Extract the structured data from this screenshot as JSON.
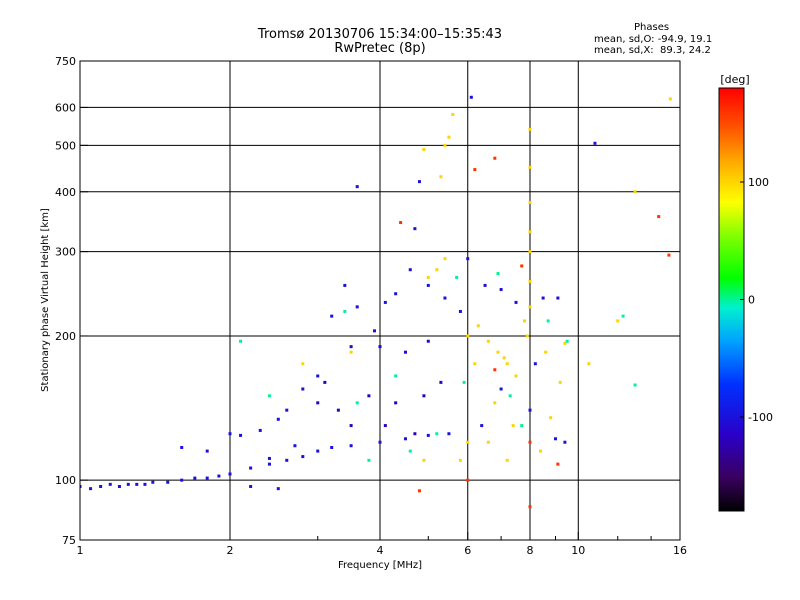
{
  "header": {
    "title": "Tromsø 20130706 15:34:00–15:35:43",
    "subtitle": "RwPretec (8p)"
  },
  "stats": {
    "heading": "Phases",
    "line1": "mean, sd,O: -94.9, 19.1",
    "line2": "mean, sd,X:  89.3, 24.2"
  },
  "chart_data": {
    "type": "scatter",
    "xlabel": "Frequency [MHz]",
    "ylabel": "Stationary phase Virtual Height [km]",
    "xscale": "log",
    "yscale": "log",
    "xlim": [
      1,
      16
    ],
    "ylim": [
      75,
      750
    ],
    "xticks": [
      "1",
      "2",
      "4",
      "6",
      "8",
      "10",
      "16"
    ],
    "yticks": [
      "75",
      "100",
      "200",
      "300",
      "400",
      "500",
      "600",
      "750"
    ],
    "grid": true,
    "colorbar": {
      "label": "[deg]",
      "range": [
        -180,
        180
      ],
      "ticks": [
        "100",
        "0",
        "-100"
      ]
    },
    "series": [
      {
        "points": [
          [
            1.0,
            97,
            -100
          ],
          [
            1.05,
            96,
            -100
          ],
          [
            1.1,
            97,
            -100
          ],
          [
            1.15,
            98,
            -100
          ],
          [
            1.2,
            97,
            -100
          ],
          [
            1.25,
            98,
            -100
          ],
          [
            1.3,
            98,
            -100
          ],
          [
            1.35,
            98,
            -100
          ],
          [
            1.4,
            99,
            -100
          ],
          [
            1.5,
            99,
            -100
          ],
          [
            1.6,
            100,
            -100
          ],
          [
            1.7,
            101,
            -100
          ],
          [
            1.8,
            101,
            -100
          ],
          [
            1.9,
            102,
            -100
          ],
          [
            2.0,
            103,
            -100
          ],
          [
            2.2,
            106,
            -100
          ],
          [
            2.4,
            108,
            -100
          ],
          [
            2.6,
            110,
            -100
          ],
          [
            2.8,
            112,
            -100
          ],
          [
            3.0,
            115,
            -100
          ],
          [
            3.2,
            117,
            -100
          ],
          [
            3.5,
            118,
            -100
          ],
          [
            4.0,
            120,
            -100
          ],
          [
            4.5,
            122,
            -100
          ],
          [
            5.0,
            124,
            -100
          ],
          [
            5.5,
            125,
            -100
          ],
          [
            1.6,
            117,
            -100
          ],
          [
            1.8,
            115,
            -100
          ],
          [
            2.0,
            125,
            -100
          ],
          [
            2.1,
            124,
            -100
          ],
          [
            2.3,
            127,
            -100
          ],
          [
            2.5,
            134,
            -100
          ],
          [
            2.6,
            140,
            -100
          ],
          [
            2.8,
            155,
            -100
          ],
          [
            3.0,
            165,
            -100
          ],
          [
            3.2,
            220,
            -100
          ],
          [
            3.4,
            255,
            -100
          ],
          [
            3.6,
            230,
            -100
          ],
          [
            3.9,
            205,
            -100
          ],
          [
            4.1,
            235,
            -100
          ],
          [
            4.3,
            245,
            -100
          ],
          [
            4.6,
            275,
            -100
          ],
          [
            5.0,
            255,
            -100
          ],
          [
            5.4,
            240,
            -100
          ],
          [
            5.8,
            225,
            -100
          ],
          [
            3.6,
            410,
            -100
          ],
          [
            4.7,
            335,
            -100
          ],
          [
            4.8,
            420,
            -100
          ],
          [
            3.5,
            190,
            -110
          ],
          [
            4.0,
            190,
            -110
          ],
          [
            4.5,
            185,
            -110
          ],
          [
            5.0,
            195,
            -110
          ],
          [
            3.3,
            140,
            -120
          ],
          [
            3.8,
            150,
            -120
          ],
          [
            4.3,
            145,
            -120
          ],
          [
            4.9,
            150,
            -120
          ],
          [
            3.5,
            130,
            -120
          ],
          [
            4.1,
            130,
            -120
          ],
          [
            4.7,
            125,
            -120
          ],
          [
            5.3,
            160,
            -110
          ],
          [
            3.0,
            145,
            -120
          ],
          [
            3.1,
            160,
            -120
          ],
          [
            6.0,
            290,
            -100
          ],
          [
            6.5,
            255,
            -100
          ],
          [
            7.0,
            250,
            -100
          ],
          [
            7.5,
            235,
            -100
          ],
          [
            8.2,
            175,
            -100
          ],
          [
            9.0,
            122,
            -100
          ],
          [
            9.4,
            120,
            -100
          ],
          [
            10.8,
            505,
            -100
          ],
          [
            6.1,
            630,
            -100
          ],
          [
            8.5,
            240,
            -100
          ],
          [
            9.1,
            240,
            -100
          ],
          [
            6.4,
            130,
            -100
          ],
          [
            7.0,
            155,
            -100
          ],
          [
            8.0,
            140,
            -100
          ],
          [
            2.2,
            97,
            -100
          ],
          [
            2.5,
            96,
            -100
          ],
          [
            2.4,
            111,
            -100
          ],
          [
            2.7,
            118,
            -100
          ]
        ]
      },
      {
        "points": [
          [
            5.3,
            430,
            100
          ],
          [
            5.4,
            500,
            100
          ],
          [
            5.5,
            520,
            100
          ],
          [
            5.6,
            580,
            100
          ],
          [
            5.0,
            265,
            100
          ],
          [
            5.2,
            275,
            100
          ],
          [
            5.4,
            290,
            100
          ],
          [
            6.0,
            200,
            100
          ],
          [
            6.3,
            210,
            100
          ],
          [
            6.6,
            195,
            100
          ],
          [
            6.9,
            185,
            100
          ],
          [
            7.2,
            175,
            100
          ],
          [
            7.5,
            165,
            100
          ],
          [
            7.8,
            215,
            100
          ],
          [
            8.0,
            540,
            100
          ],
          [
            8.0,
            450,
            100
          ],
          [
            8.0,
            380,
            100
          ],
          [
            8.0,
            330,
            100
          ],
          [
            8.0,
            300,
            100
          ],
          [
            8.0,
            260,
            100
          ],
          [
            8.0,
            230,
            100
          ],
          [
            7.9,
            200,
            100
          ],
          [
            6.2,
            175,
            100
          ],
          [
            6.8,
            145,
            100
          ],
          [
            7.4,
            130,
            100
          ],
          [
            8.4,
            115,
            100
          ],
          [
            8.8,
            135,
            100
          ],
          [
            9.2,
            160,
            100
          ],
          [
            6.0,
            120,
            100
          ],
          [
            6.6,
            120,
            100
          ],
          [
            7.2,
            110,
            100
          ],
          [
            15.3,
            625,
            100
          ],
          [
            13.0,
            400,
            100
          ],
          [
            12.0,
            215,
            100
          ],
          [
            10.5,
            175,
            100
          ],
          [
            4.9,
            110,
            100
          ],
          [
            5.8,
            110,
            100
          ],
          [
            3.5,
            185,
            100
          ],
          [
            2.8,
            175,
            100
          ],
          [
            7.1,
            180,
            100
          ],
          [
            4.9,
            490,
            100
          ],
          [
            9.4,
            193,
            100
          ],
          [
            8.6,
            185,
            100
          ]
        ]
      },
      {
        "points": [
          [
            2.1,
            195,
            0
          ],
          [
            2.4,
            150,
            0
          ],
          [
            3.6,
            145,
            0
          ],
          [
            4.3,
            165,
            0
          ],
          [
            5.7,
            265,
            0
          ],
          [
            7.3,
            150,
            0
          ],
          [
            8.7,
            215,
            0
          ],
          [
            9.5,
            195,
            0
          ],
          [
            12.3,
            220,
            0
          ],
          [
            13.0,
            158,
            0
          ],
          [
            3.8,
            110,
            0
          ],
          [
            6.9,
            270,
            0
          ],
          [
            5.2,
            125,
            0
          ],
          [
            3.4,
            225,
            0
          ],
          [
            4.6,
            115,
            0
          ],
          [
            7.7,
            130,
            0
          ],
          [
            5.9,
            160,
            0
          ]
        ]
      },
      {
        "points": [
          [
            6.8,
            170,
            160
          ],
          [
            8.0,
            88,
            160
          ],
          [
            6.2,
            445,
            160
          ],
          [
            9.1,
            108,
            160
          ],
          [
            4.4,
            345,
            160
          ],
          [
            14.5,
            355,
            160
          ],
          [
            6.8,
            470,
            160
          ],
          [
            8.0,
            120,
            160
          ],
          [
            4.8,
            95,
            160
          ],
          [
            15.2,
            295,
            160
          ],
          [
            6.0,
            100,
            160
          ],
          [
            7.7,
            280,
            160
          ]
        ]
      }
    ]
  }
}
